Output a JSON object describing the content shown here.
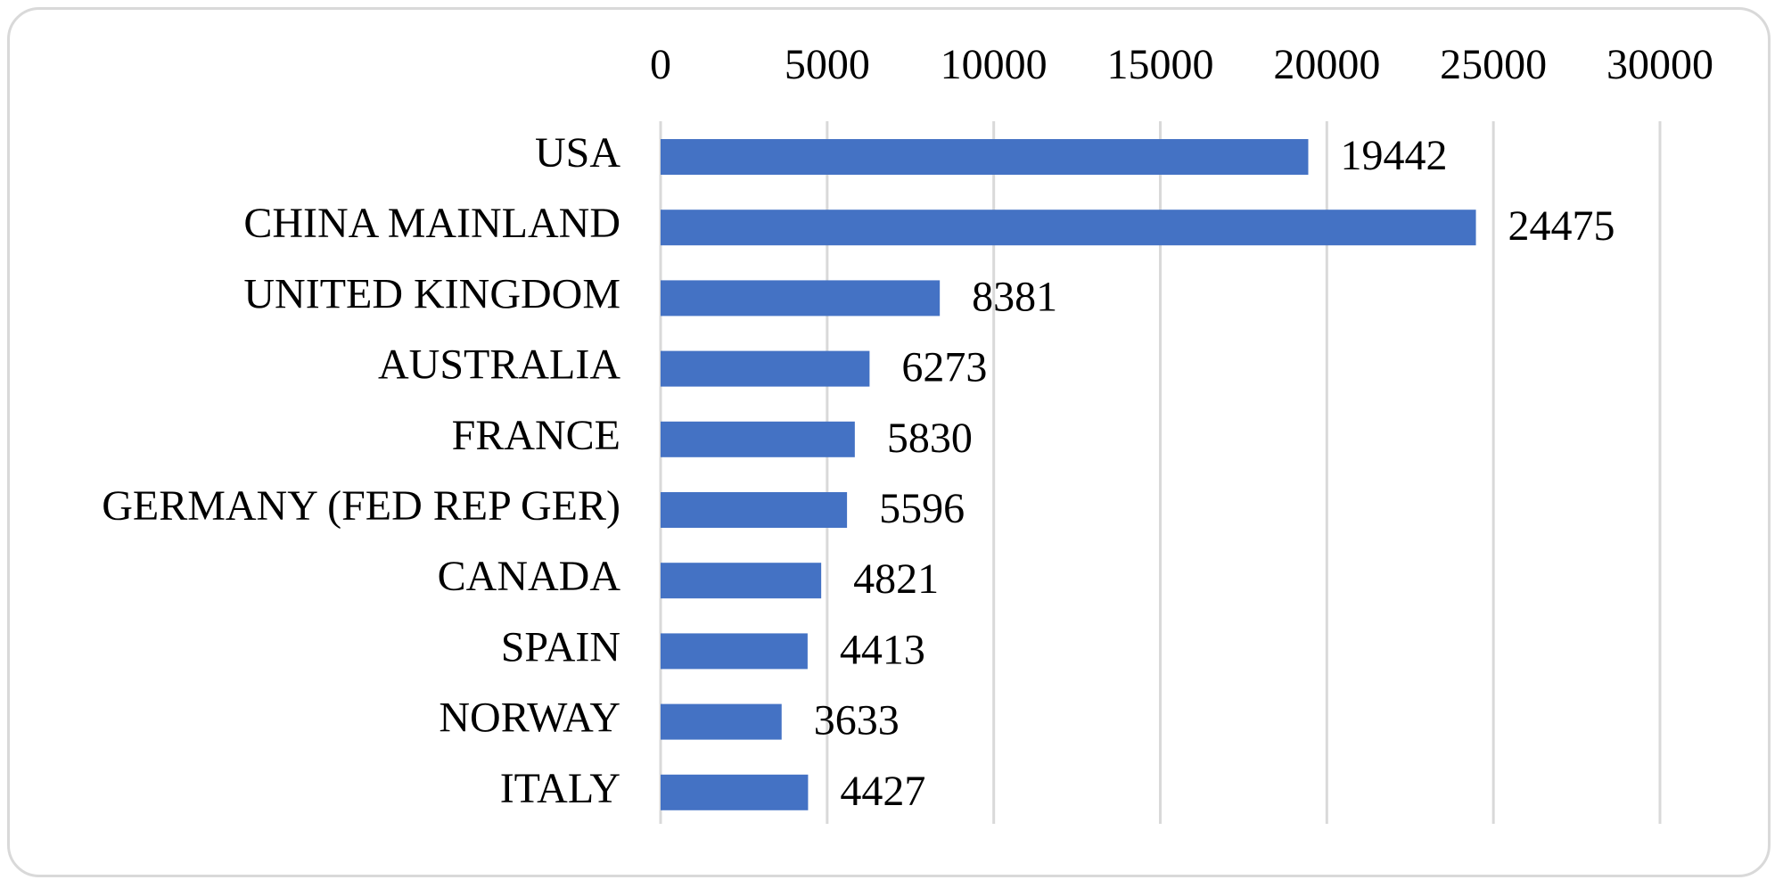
{
  "chart_data": {
    "type": "bar",
    "orientation": "horizontal",
    "title": "",
    "xlabel": "",
    "ylabel": "",
    "categories": [
      "USA",
      "CHINA MAINLAND",
      "UNITED KINGDOM",
      "AUSTRALIA",
      "FRANCE",
      "GERMANY (FED REP GER)",
      "CANADA",
      "SPAIN",
      "NORWAY",
      "ITALY"
    ],
    "values": [
      19442,
      24475,
      8381,
      6273,
      5830,
      5596,
      4821,
      4413,
      3633,
      4427
    ],
    "xlim": [
      0,
      30000
    ],
    "x_ticks": [
      0,
      5000,
      10000,
      15000,
      20000,
      25000,
      30000
    ],
    "x_tick_labels": [
      "0",
      "5000",
      "10000",
      "15000",
      "20000",
      "25000",
      "30000"
    ],
    "x_axis_position": "top",
    "grid": true,
    "legend": "none",
    "data_labels": true,
    "colors": {
      "bar": "#4472c4",
      "grid": "#d9d9d9",
      "frame": "#d9d9d9",
      "text": "#000000"
    }
  }
}
